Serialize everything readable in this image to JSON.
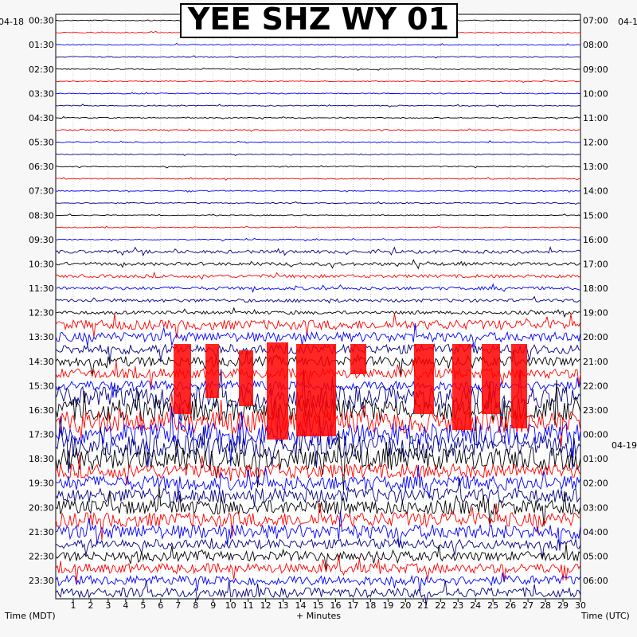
{
  "title": "YEE SHZ WY 01",
  "chart_data": {
    "type": "line",
    "title": "YEE SHZ WY 01",
    "date_left": "04-18",
    "date_right": "04-1",
    "date_right_mid": "04-19",
    "xlabel": "+ Minutes",
    "xlabel_left": "Time (MDT)",
    "xlabel_right": "Time (UTC)",
    "x_ticks": [
      "1",
      "2",
      "3",
      "4",
      "5",
      "6",
      "7",
      "8",
      "9",
      "10",
      "11",
      "12",
      "13",
      "14",
      "15",
      "16",
      "17",
      "18",
      "19",
      "20",
      "21",
      "22",
      "23",
      "24",
      "25",
      "26",
      "27",
      "28",
      "29",
      "30"
    ],
    "xlim": [
      0,
      30
    ],
    "left_time_labels": [
      "00:30",
      "01:30",
      "02:30",
      "03:30",
      "04:30",
      "05:30",
      "06:30",
      "07:30",
      "08:30",
      "09:30",
      "10:30",
      "11:30",
      "12:30",
      "13:30",
      "14:30",
      "15:30",
      "16:30",
      "17:30",
      "18:30",
      "19:30",
      "20:30",
      "21:30",
      "22:30",
      "23:30"
    ],
    "right_time_labels": [
      "07:00",
      "08:00",
      "09:00",
      "10:00",
      "11:00",
      "12:00",
      "13:00",
      "14:00",
      "15:00",
      "16:00",
      "17:00",
      "18:00",
      "19:00",
      "20:00",
      "21:00",
      "22:00",
      "23:00",
      "00:00",
      "01:00",
      "02:00",
      "03:00",
      "04:00",
      "05:00",
      "06:00"
    ],
    "trace_colors": [
      "#000000",
      "#ff0000",
      "#0000ff",
      "#00007f"
    ],
    "clip_color": "#ff0000",
    "traces_per_hour": 2,
    "trace_count": 48
  }
}
